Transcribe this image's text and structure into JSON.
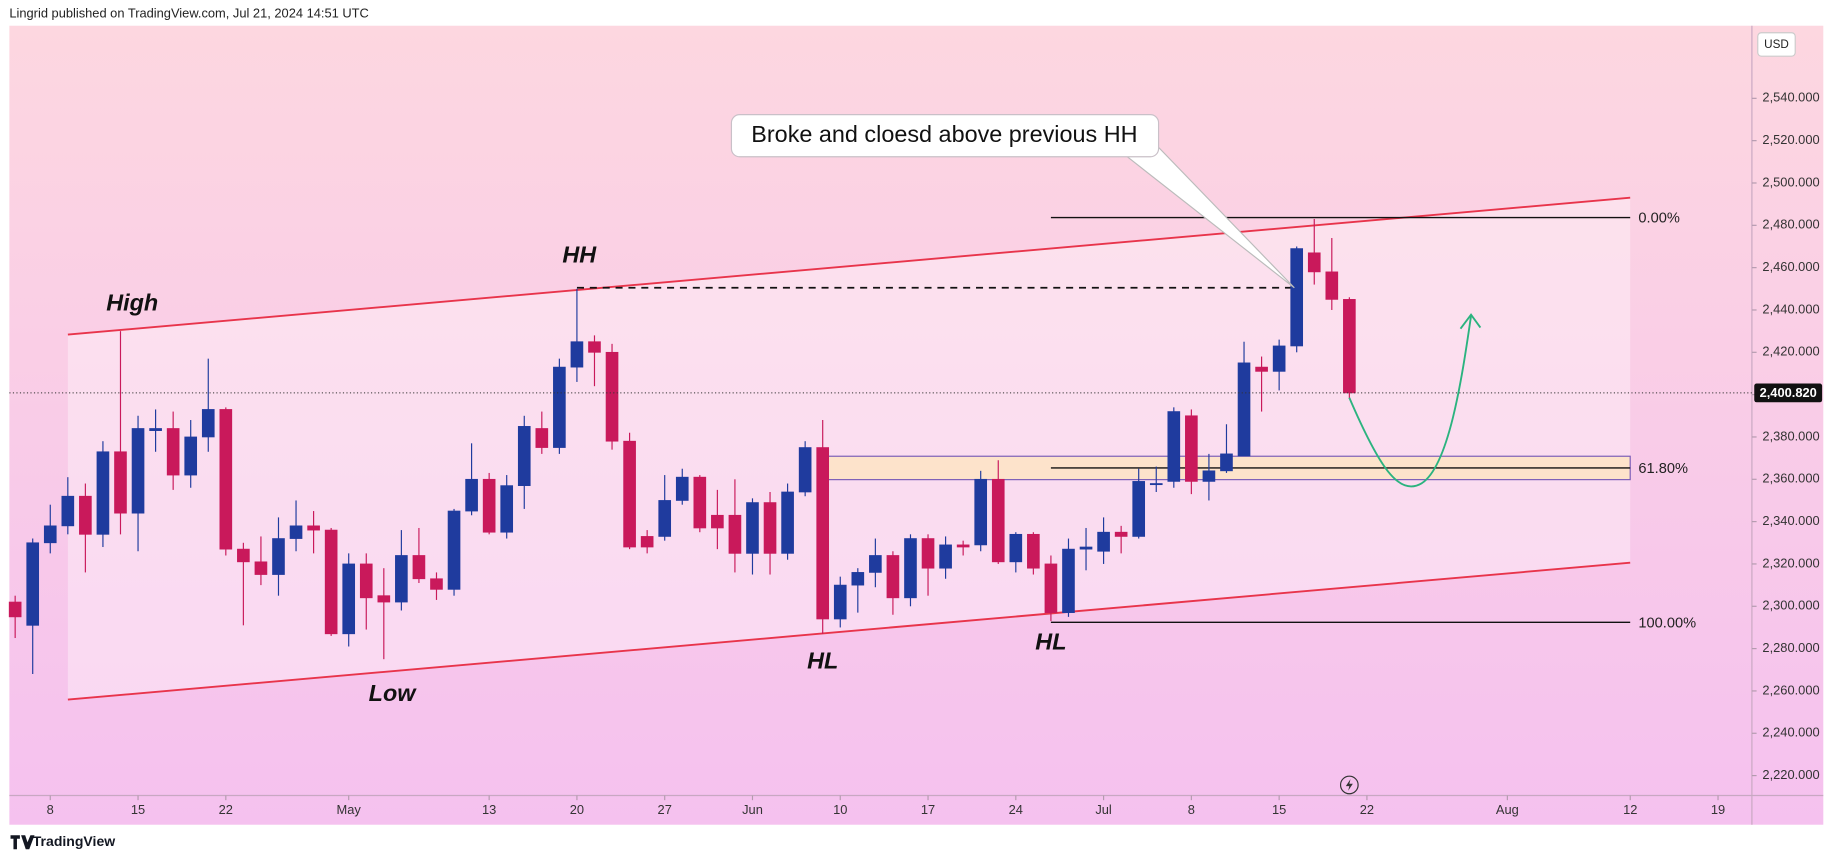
{
  "header": "Lingrid published on TradingView.com, Jul 21, 2024 14:51 UTC",
  "footer": "TradingView",
  "chart_data": {
    "type": "candlestick",
    "currency": "USD",
    "up_color": "#1f3b9e",
    "down_color": "#c9195b",
    "x": [
      -2,
      -1,
      0,
      1,
      2,
      3,
      4,
      5,
      6,
      7,
      8,
      9,
      10,
      11,
      12,
      13,
      14,
      15,
      16,
      17,
      18,
      19,
      20,
      21,
      22,
      23,
      24,
      25,
      26,
      27,
      28,
      29,
      30,
      31,
      32,
      33,
      34,
      35,
      36,
      37,
      38,
      39,
      40,
      41,
      42,
      43,
      44,
      45,
      46,
      47,
      48,
      49,
      50,
      51,
      52,
      53,
      54,
      55,
      56,
      57,
      58,
      59,
      60,
      61,
      62,
      63,
      64,
      65,
      66,
      67,
      68,
      69,
      70,
      71,
      72,
      73,
      74
    ],
    "open": [
      2302,
      2291,
      2330,
      2338,
      2352,
      2334,
      2373,
      2344,
      2383,
      2384,
      2362,
      2380,
      2393,
      2327,
      2321,
      2315,
      2332,
      2338,
      2336,
      2287,
      2320,
      2305,
      2302,
      2324,
      2313,
      2308,
      2345,
      2360,
      2335,
      2357,
      2384,
      2375,
      2413,
      2425,
      2420,
      2378,
      2333,
      2333,
      2350,
      2361,
      2343,
      2343,
      2325,
      2349,
      2325,
      2354,
      2375,
      2294,
      2310,
      2316,
      2324,
      2304,
      2332,
      2318,
      2329,
      2329,
      2360,
      2321,
      2334,
      2320,
      2297,
      2327,
      2326,
      2335,
      2333,
      2358,
      2359,
      2390,
      2359,
      2364,
      2371,
      2413,
      2411,
      2423,
      2467,
      2458,
      2445
    ],
    "high": [
      2305,
      2332,
      2348,
      2361,
      2358,
      2378,
      2430,
      2390,
      2393,
      2392,
      2388,
      2417,
      2394,
      2330,
      2333,
      2342,
      2350,
      2345,
      2337,
      2325,
      2325,
      2318,
      2336,
      2337,
      2316,
      2346,
      2377,
      2363,
      2362,
      2390,
      2392,
      2417,
      2450,
      2428,
      2424,
      2382,
      2336,
      2362,
      2365,
      2362,
      2355,
      2360,
      2351,
      2354,
      2358,
      2378,
      2388,
      2314,
      2318,
      2332,
      2326,
      2334,
      2334,
      2333,
      2331,
      2364,
      2369,
      2335,
      2335,
      2324,
      2332,
      2337,
      2342,
      2338,
      2365,
      2366,
      2394,
      2393,
      2372,
      2386,
      2425,
      2418,
      2426,
      2470,
      2483,
      2474,
      2446
    ],
    "low": [
      2285,
      2268,
      2325,
      2334,
      2316,
      2328,
      2334,
      2326,
      2373,
      2355,
      2356,
      2373,
      2324,
      2291,
      2310,
      2305,
      2326,
      2325,
      2286,
      2281,
      2289,
      2275,
      2298,
      2311,
      2303,
      2305,
      2343,
      2334,
      2332,
      2346,
      2372,
      2372,
      2406,
      2404,
      2374,
      2327,
      2325,
      2331,
      2348,
      2335,
      2327,
      2316,
      2315,
      2315,
      2322,
      2352,
      2287,
      2290,
      2297,
      2309,
      2296,
      2300,
      2305,
      2313,
      2324,
      2326,
      2320,
      2316,
      2315,
      2293,
      2295,
      2317,
      2320,
      2325,
      2332,
      2354,
      2356,
      2353,
      2350,
      2363,
      2371,
      2392,
      2402,
      2420,
      2452,
      2440,
      2398
    ],
    "close": [
      2295,
      2330,
      2338,
      2352,
      2334,
      2373,
      2344,
      2384,
      2384,
      2362,
      2380,
      2393,
      2327,
      2321,
      2315,
      2332,
      2338,
      2336,
      2287,
      2320,
      2304,
      2302,
      2324,
      2313,
      2308,
      2345,
      2360,
      2335,
      2357,
      2385,
      2375,
      2413,
      2425,
      2420,
      2378,
      2328,
      2328,
      2350,
      2361,
      2337,
      2337,
      2325,
      2349,
      2325,
      2354,
      2375,
      2294,
      2310,
      2316,
      2324,
      2304,
      2332,
      2318,
      2329,
      2328,
      2360,
      2321,
      2334,
      2318,
      2297,
      2327,
      2328,
      2335,
      2333,
      2359,
      2358,
      2392,
      2359,
      2364,
      2372,
      2415,
      2411,
      2423,
      2469,
      2458,
      2445,
      2400.82
    ],
    "last_price": {
      "value": 2400.82,
      "label": "2,400.820"
    },
    "xlim": [
      -2.33,
      96.93
    ],
    "xticks": [
      {
        "value": 0,
        "label": "8"
      },
      {
        "value": 5,
        "label": "15"
      },
      {
        "value": 10,
        "label": "22"
      },
      {
        "value": 17,
        "label": "May"
      },
      {
        "value": 25,
        "label": "13"
      },
      {
        "value": 30,
        "label": "20"
      },
      {
        "value": 35,
        "label": "27"
      },
      {
        "value": 40,
        "label": "Jun"
      },
      {
        "value": 45,
        "label": "10"
      },
      {
        "value": 50,
        "label": "17"
      },
      {
        "value": 55,
        "label": "24"
      },
      {
        "value": 60,
        "label": "Jul"
      },
      {
        "value": 65,
        "label": "8"
      },
      {
        "value": 70,
        "label": "15"
      },
      {
        "value": 75,
        "label": "22"
      },
      {
        "value": 83,
        "label": "Aug"
      },
      {
        "value": 90,
        "label": "12"
      },
      {
        "value": 95,
        "label": "19"
      }
    ],
    "ylim": [
      2210.6,
      2574.3
    ],
    "yticks": [
      {
        "value": 2220,
        "label": "2,220.000"
      },
      {
        "value": 2240,
        "label": "2,240.000"
      },
      {
        "value": 2260,
        "label": "2,260.000"
      },
      {
        "value": 2280,
        "label": "2,280.000"
      },
      {
        "value": 2300,
        "label": "2,300.000"
      },
      {
        "value": 2320,
        "label": "2,320.000"
      },
      {
        "value": 2340,
        "label": "2,340.000"
      },
      {
        "value": 2360,
        "label": "2,360.000"
      },
      {
        "value": 2380,
        "label": "2,380.000"
      },
      {
        "value": 2400,
        "label": "2,400.000"
      },
      {
        "value": 2420,
        "label": "2,420.000"
      },
      {
        "value": 2440,
        "label": "2,440.000"
      },
      {
        "value": 2460,
        "label": "2,460.000"
      },
      {
        "value": 2480,
        "label": "2,480.000"
      },
      {
        "value": 2500,
        "label": "2,500.000"
      },
      {
        "value": 2520,
        "label": "2,520.000"
      },
      {
        "value": 2540,
        "label": "2,540.000"
      }
    ],
    "annotations": {
      "callout": "Broke and cloesd above previous HH",
      "high": "High",
      "hh": "HH",
      "low": "Low",
      "hl1": "HL",
      "hl2": "HL",
      "fib_0": "0.00%",
      "fib_618": "61.80%",
      "fib_100": "100.00%"
    }
  }
}
